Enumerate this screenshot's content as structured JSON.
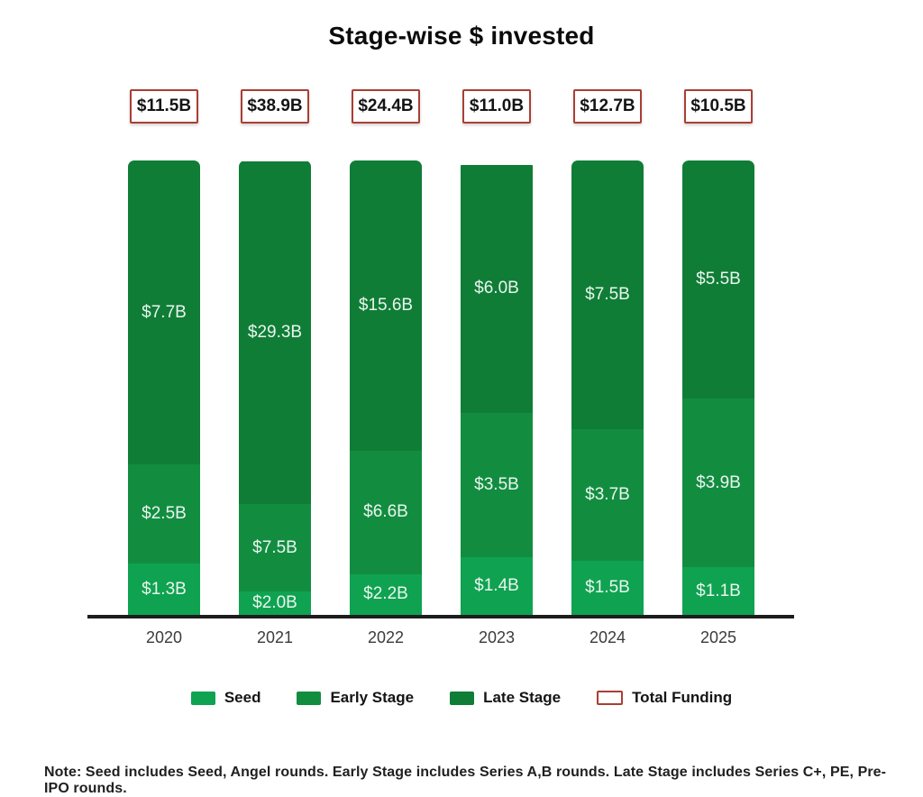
{
  "title": "Stage-wise $ invested",
  "note": "Note: Seed includes Seed, Angel rounds. Early Stage includes Series A,B rounds. Late Stage includes Series C+, PE, Pre-IPO rounds.",
  "colors": {
    "seed": "#0FA251",
    "early": "#128D40",
    "late": "#0F7D36",
    "total_border": "#A93F33",
    "axis": "#1D1D1D",
    "segment_label_text": "#EAF5EE"
  },
  "chart_data": {
    "type": "bar",
    "stacked": true,
    "normalized_100_percent": true,
    "title": "Stage-wise $ invested",
    "xlabel": "",
    "ylabel": "",
    "grid": false,
    "legend_position": "bottom",
    "categories": [
      "2020",
      "2021",
      "2022",
      "2023",
      "2024",
      "2025"
    ],
    "series": [
      {
        "name": "Seed",
        "color_key": "seed",
        "values": [
          1.3,
          2.0,
          2.2,
          1.4,
          1.5,
          1.1
        ],
        "labels": [
          "$1.3B",
          "$2.0B",
          "$2.2B",
          "$1.4B",
          "$1.5B",
          "$1.1B"
        ]
      },
      {
        "name": "Early Stage",
        "color_key": "early",
        "values": [
          2.5,
          7.5,
          6.6,
          3.5,
          3.7,
          3.9
        ],
        "labels": [
          "$2.5B",
          "$7.5B",
          "$6.6B",
          "$3.5B",
          "$3.7B",
          "$3.9B"
        ]
      },
      {
        "name": "Late Stage",
        "color_key": "late",
        "values": [
          7.7,
          29.3,
          15.6,
          6.0,
          7.5,
          5.5
        ],
        "labels": [
          "$7.7B",
          "$29.3B",
          "$15.6B",
          "$6.0B",
          "$7.5B",
          "$5.5B"
        ]
      }
    ],
    "totals": [
      11.5,
      38.9,
      24.4,
      11.0,
      12.7,
      10.5
    ],
    "total_labels": [
      "$11.5B",
      "$38.9B",
      "$24.4B",
      "$11.0B",
      "$12.7B",
      "$10.5B"
    ]
  },
  "legend": {
    "items": [
      {
        "label": "Seed",
        "color_key": "seed",
        "style": "fill"
      },
      {
        "label": "Early Stage",
        "color_key": "early",
        "style": "fill"
      },
      {
        "label": "Late Stage",
        "color_key": "late",
        "style": "fill"
      },
      {
        "label": "Total Funding",
        "color_key": "total_border",
        "style": "outline"
      }
    ]
  }
}
